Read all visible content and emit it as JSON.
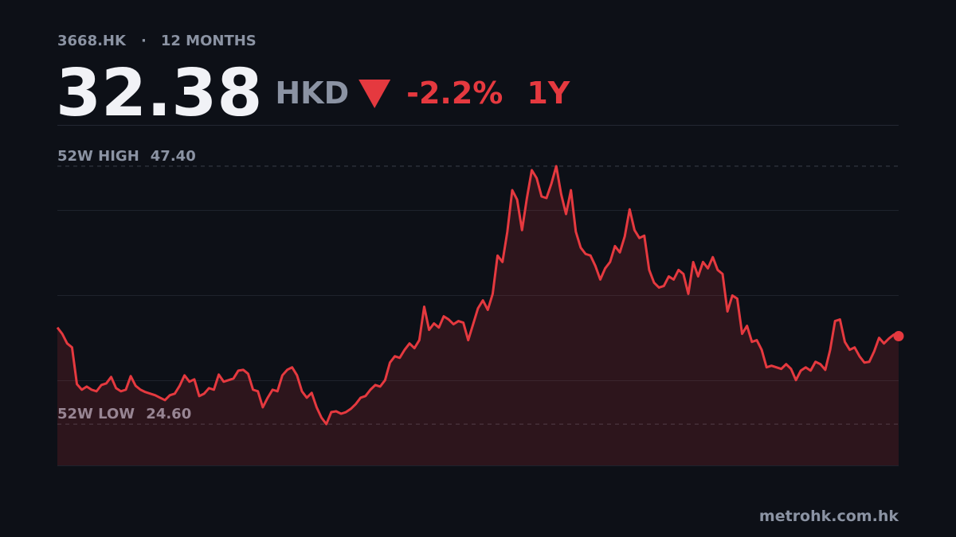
{
  "header": {
    "ticker": "3668.HK",
    "separator": "·",
    "period": "12 MONTHS"
  },
  "price": 32.38,
  "currency": "HKD",
  "change": {
    "value": -2.2,
    "label": "-2.2%"
  },
  "range": "1Y",
  "footer": "metrohk.com.hk",
  "chart_data": {
    "type": "area",
    "color": "#e5393f",
    "ylim": [
      20.95,
      51.05
    ],
    "reference_lines": [
      {
        "name": "52W HIGH",
        "value": 47.4,
        "value_label": "47.40"
      },
      {
        "name": "52W LOW",
        "value": 24.6,
        "value_label": "24.60"
      }
    ],
    "values": [
      33.14,
      32.58,
      31.73,
      31.38,
      28.13,
      27.64,
      27.92,
      27.64,
      27.5,
      28.06,
      28.2,
      28.77,
      27.78,
      27.5,
      27.64,
      28.84,
      27.99,
      27.64,
      27.43,
      27.29,
      27.15,
      26.93,
      26.72,
      27.15,
      27.29,
      27.99,
      28.91,
      28.35,
      28.56,
      27.08,
      27.29,
      27.78,
      27.64,
      28.98,
      28.35,
      28.49,
      28.63,
      29.33,
      29.4,
      29.05,
      27.64,
      27.5,
      26.09,
      26.93,
      27.64,
      27.5,
      28.91,
      29.4,
      29.62,
      28.91,
      27.5,
      26.93,
      27.36,
      26.09,
      25.17,
      24.6,
      25.66,
      25.73,
      25.52,
      25.66,
      25.95,
      26.37,
      26.93,
      27.08,
      27.64,
      28.06,
      27.92,
      28.49,
      30.04,
      30.6,
      30.46,
      31.17,
      31.73,
      31.31,
      32.02,
      34.98,
      32.93,
      33.5,
      33.14,
      34.13,
      33.85,
      33.43,
      33.71,
      33.57,
      32.02,
      33.43,
      34.84,
      35.54,
      34.7,
      36.11,
      39.5,
      38.93,
      41.61,
      45.28,
      44.44,
      41.75,
      44.58,
      47.05,
      46.34,
      44.72,
      44.58,
      45.85,
      47.4,
      44.93,
      43.17,
      45.28,
      41.61,
      40.2,
      39.64,
      39.5,
      38.58,
      37.38,
      38.37,
      38.93,
      40.34,
      39.78,
      41.19,
      43.59,
      41.75,
      41.05,
      41.26,
      38.23,
      37.1,
      36.67,
      36.81,
      37.66,
      37.38,
      38.23,
      37.87,
      36.11,
      38.93,
      37.66,
      38.93,
      38.37,
      39.36,
      38.23,
      37.87,
      34.56,
      35.97,
      35.69,
      32.58,
      33.29,
      31.87,
      32.02,
      31.17,
      29.62,
      29.76,
      29.62,
      29.48,
      29.9,
      29.48,
      28.49,
      29.33,
      29.62,
      29.33,
      30.11,
      29.9,
      29.4,
      31.17,
      33.71,
      33.85,
      31.87,
      31.17,
      31.38,
      30.6,
      30.04,
      30.11,
      31.03,
      32.23,
      31.73,
      32.16,
      32.51,
      32.38
    ]
  }
}
